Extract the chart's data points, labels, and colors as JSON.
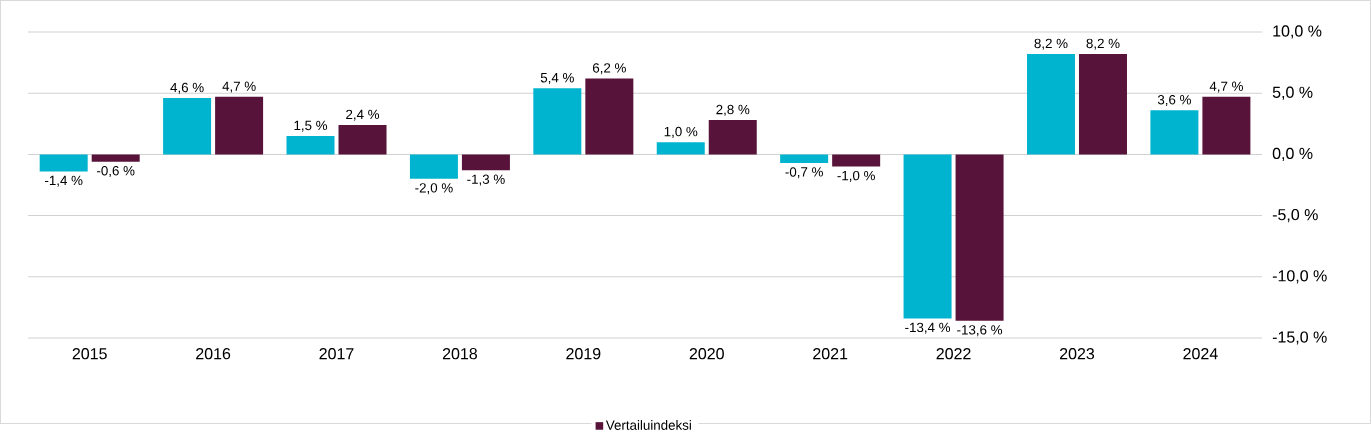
{
  "chart_data": {
    "type": "bar",
    "categories": [
      "2015",
      "2016",
      "2017",
      "2018",
      "2019",
      "2020",
      "2021",
      "2022",
      "2023",
      "2024"
    ],
    "series": [
      {
        "color": "#00b4d0",
        "values": [
          -1.4,
          4.6,
          1.5,
          -2.0,
          5.4,
          1.0,
          -0.7,
          -13.4,
          8.2,
          3.6
        ],
        "value_labels": [
          "-1,4 %",
          "4,6 %",
          "1,5 %",
          "-2,0 %",
          "5,4 %",
          "1,0 %",
          "-0,7 %",
          "-13,4 %",
          "8,2 %",
          "3,6 %"
        ]
      },
      {
        "name": "Vertailuindeksi",
        "color": "#58133a",
        "values": [
          -0.6,
          4.7,
          2.4,
          -1.3,
          6.2,
          2.8,
          -1.0,
          -13.6,
          8.2,
          4.7
        ],
        "value_labels": [
          "-0,6 %",
          "4,7 %",
          "2,4 %",
          "-1,3 %",
          "6,2 %",
          "2,8 %",
          "-1,0 %",
          "-13,6 %",
          "8,2 %",
          "4,7 %"
        ]
      }
    ],
    "ylim": [
      -15,
      10
    ],
    "yticks": [
      {
        "value": -15,
        "label": "-15,0 %"
      },
      {
        "value": -10,
        "label": "-10,0 %"
      },
      {
        "value": -5,
        "label": "-5,0 %"
      },
      {
        "value": 0,
        "label": "0,0 %"
      },
      {
        "value": 5,
        "label": "5,0 %"
      },
      {
        "value": 10,
        "label": "10,0 %"
      }
    ],
    "grid": "y",
    "legend": "bottom"
  }
}
